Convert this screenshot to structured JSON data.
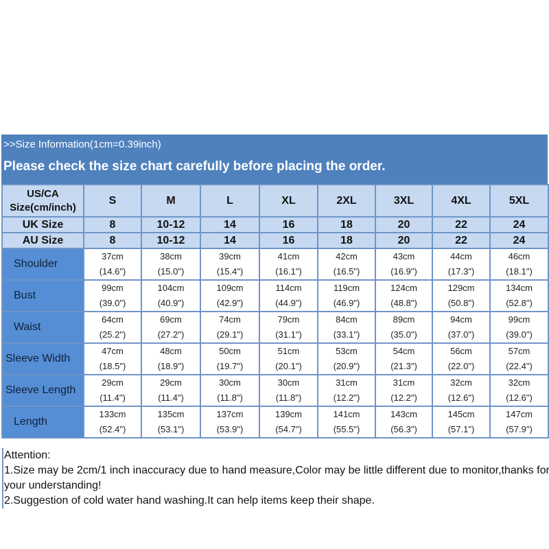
{
  "header": {
    "info": ">>Size Information(1cm=0.39inch)",
    "notice": "Please check the size chart carefully before placing the order."
  },
  "table": {
    "corner_label": "US/CA Size(cm/inch)",
    "sizes": [
      "S",
      "M",
      "L",
      "XL",
      "2XL",
      "3XL",
      "4XL",
      "5XL"
    ],
    "uk": {
      "label": "UK Size",
      "values": [
        "8",
        "10-12",
        "14",
        "16",
        "18",
        "20",
        "22",
        "24"
      ]
    },
    "au": {
      "label": "AU Size",
      "values": [
        "8",
        "10-12",
        "14",
        "16",
        "18",
        "20",
        "22",
        "24"
      ]
    },
    "rows": [
      {
        "label": "Shoulder",
        "cm": [
          "37cm",
          "38cm",
          "39cm",
          "41cm",
          "42cm",
          "43cm",
          "44cm",
          "46cm"
        ],
        "inch": [
          "(14.6\")",
          "(15.0\")",
          "(15.4\")",
          "(16.1\")",
          "(16.5\")",
          "(16.9\")",
          "(17.3\")",
          "(18.1\")"
        ]
      },
      {
        "label": "Bust",
        "cm": [
          "99cm",
          "104cm",
          "109cm",
          "114cm",
          "119cm",
          "124cm",
          "129cm",
          "134cm"
        ],
        "inch": [
          "(39.0\")",
          "(40.9\")",
          "(42.9\")",
          "(44.9\")",
          "(46.9\")",
          "(48.8\")",
          "(50.8\")",
          "(52.8\")"
        ]
      },
      {
        "label": "Waist",
        "cm": [
          "64cm",
          "69cm",
          "74cm",
          "79cm",
          "84cm",
          "89cm",
          "94cm",
          "99cm"
        ],
        "inch": [
          "(25.2\")",
          "(27.2\")",
          "(29.1\")",
          "(31.1\")",
          "(33.1\")",
          "(35.0\")",
          "(37.0\")",
          "(39.0\")"
        ]
      },
      {
        "label": "Sleeve Width",
        "cm": [
          "47cm",
          "48cm",
          "50cm",
          "51cm",
          "53cm",
          "54cm",
          "56cm",
          "57cm"
        ],
        "inch": [
          "(18.5\")",
          "(18.9\")",
          "(19.7\")",
          "(20.1\")",
          "(20.9\")",
          "(21.3\")",
          "(22.0\")",
          "(22.4\")"
        ]
      },
      {
        "label": "Sleeve Length",
        "cm": [
          "29cm",
          "29cm",
          "30cm",
          "30cm",
          "31cm",
          "31cm",
          "32cm",
          "32cm"
        ],
        "inch": [
          "(11.4\")",
          "(11.4\")",
          "(11.8\")",
          "(11.8\")",
          "(12.2\")",
          "(12.2\")",
          "(12.6\")",
          "(12.6\")"
        ]
      },
      {
        "label": "Length",
        "cm": [
          "133cm",
          "135cm",
          "137cm",
          "139cm",
          "141cm",
          "143cm",
          "145cm",
          "147cm"
        ],
        "inch": [
          "(52.4\")",
          "(53.1\")",
          "(53.9\")",
          "(54.7\")",
          "(55.5\")",
          "(56.3\")",
          "(57.1\")",
          "(57.9\")"
        ]
      }
    ]
  },
  "attention": {
    "title": "Attention:",
    "note1": "1.Size may be 2cm/1 inch inaccuracy due to hand measure,Color may be little different due to monitor,thanks for your understanding!",
    "note2": "2.Suggestion of cold water hand washing.It can help items keep their shape."
  },
  "colors": {
    "band": "#4f81bd",
    "header_cells": "#c6d9f1",
    "row_labels": "#558ed5",
    "border": "#6f95c8"
  }
}
